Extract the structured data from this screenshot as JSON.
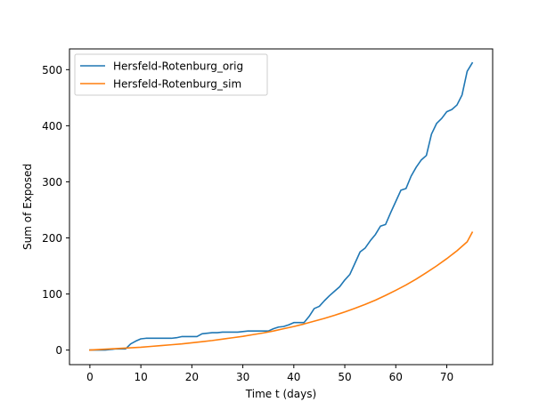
{
  "chart_data": {
    "type": "line",
    "xlabel": "Time t (days)",
    "ylabel": "Sum of Exposed",
    "xlim": [
      -4,
      79
    ],
    "ylim": [
      -26,
      537
    ],
    "xticks": [
      0,
      10,
      20,
      30,
      40,
      50,
      60,
      70
    ],
    "yticks": [
      0,
      100,
      200,
      300,
      400,
      500
    ],
    "grid": false,
    "legend_position": "upper-left",
    "series": [
      {
        "name": "Hersfeld-Rotenburg_orig",
        "color": "#1f77b4",
        "x": [
          0,
          1,
          2,
          3,
          4,
          5,
          6,
          7,
          8,
          9,
          10,
          11,
          12,
          13,
          14,
          15,
          16,
          17,
          18,
          19,
          20,
          21,
          22,
          23,
          24,
          25,
          26,
          27,
          28,
          29,
          30,
          31,
          32,
          33,
          34,
          35,
          36,
          37,
          38,
          39,
          40,
          41,
          42,
          43,
          44,
          45,
          46,
          47,
          48,
          49,
          50,
          51,
          52,
          53,
          54,
          55,
          56,
          57,
          58,
          59,
          60,
          61,
          62,
          63,
          64,
          65,
          66,
          67,
          68,
          69,
          70,
          71,
          72,
          73,
          74,
          75
        ],
        "y": [
          0,
          0,
          0,
          0,
          1,
          2,
          2,
          2,
          11,
          16,
          20,
          21,
          21,
          21,
          21,
          21,
          21,
          22,
          24,
          24,
          24,
          24,
          29,
          30,
          31,
          31,
          32,
          32,
          32,
          32,
          33,
          34,
          34,
          34,
          34,
          34,
          38,
          41,
          42,
          45,
          49,
          49,
          49,
          60,
          74,
          78,
          88,
          97,
          105,
          113,
          125,
          135,
          155,
          175,
          182,
          195,
          206,
          221,
          224,
          245,
          265,
          285,
          288,
          310,
          326,
          339,
          347,
          385,
          404,
          413,
          425,
          429,
          437,
          455,
          497,
          512
        ]
      },
      {
        "name": "Hersfeld-Rotenburg_sim",
        "color": "#ff7f0e",
        "x": [
          0,
          2,
          4,
          6,
          8,
          10,
          12,
          14,
          16,
          18,
          20,
          22,
          24,
          26,
          28,
          30,
          32,
          34,
          36,
          38,
          40,
          42,
          44,
          46,
          48,
          50,
          52,
          54,
          56,
          58,
          60,
          62,
          64,
          66,
          68,
          70,
          72,
          74,
          75
        ],
        "y": [
          0,
          1,
          2,
          3,
          4,
          5,
          6.5,
          8,
          9.5,
          11,
          13,
          15,
          17,
          19.5,
          22,
          24.5,
          27.5,
          30.5,
          34,
          38,
          42,
          46.5,
          51.5,
          56.5,
          62,
          68,
          74.5,
          81.5,
          89,
          97.5,
          106.5,
          116,
          126.5,
          138,
          150,
          163,
          177,
          193,
          210
        ]
      }
    ]
  }
}
